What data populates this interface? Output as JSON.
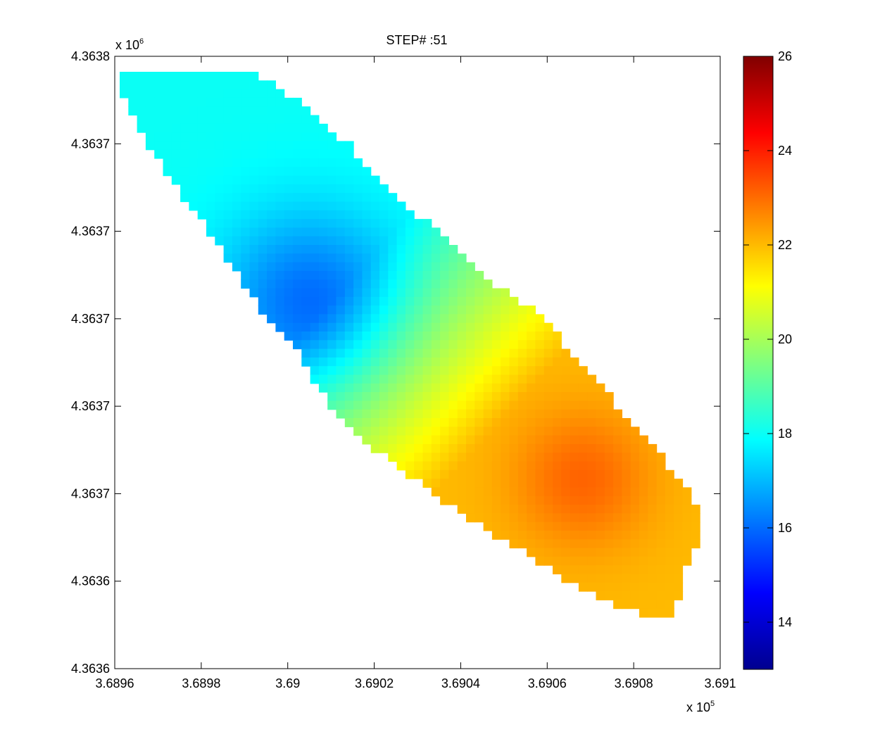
{
  "chart_data": {
    "type": "heatmap",
    "title": "STEP# :51",
    "xlabel": "",
    "ylabel": "",
    "x_exponent_label": "x 10",
    "x_exponent_power": "5",
    "y_exponent_label": "x 10",
    "y_exponent_power": "6",
    "xlim": [
      3.6896,
      3.691
    ],
    "ylim": [
      4.3636,
      4.3638
    ],
    "x_ticks": [
      "3.6896",
      "3.6898",
      "3.69",
      "3.6902",
      "3.6904",
      "3.6906",
      "3.6908",
      "3.691"
    ],
    "y_ticks": [
      "4.3636",
      "4.3636",
      "4.3637",
      "4.3637",
      "4.3637",
      "4.3637",
      "4.3637",
      "4.3638"
    ],
    "colorbar": {
      "colormap": "jet",
      "clim": [
        13,
        26
      ],
      "ticks": [
        "14",
        "16",
        "18",
        "20",
        "22",
        "24",
        "26"
      ]
    },
    "field_values": {
      "min": 16.4,
      "max": 23.1,
      "hotspots": [
        {
          "x": 3.69005,
          "y": 4.36372,
          "value": 16.4
        },
        {
          "x": 3.69068,
          "y": 4.363662,
          "value": 23.1
        }
      ]
    },
    "grid": false,
    "legend": "none"
  }
}
